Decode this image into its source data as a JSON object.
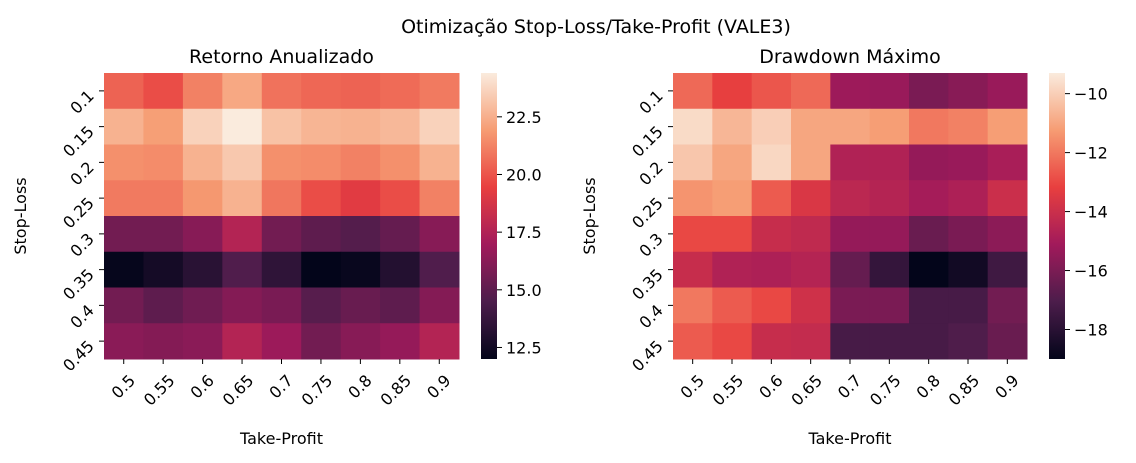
{
  "suptitle": "Otimização Stop-Loss/Take-Profit (VALE3)",
  "colormap": [
    "#03051a",
    "#4c1d4b",
    "#a11a5b",
    "#e83f3f",
    "#f69c73",
    "#faebdd"
  ],
  "chart_data": [
    {
      "type": "heatmap",
      "title": "Retorno Anualizado",
      "xlabel": "Take-Profit",
      "ylabel": "Stop-Loss",
      "x": [
        "0.5",
        "0.55",
        "0.6",
        "0.65",
        "0.7",
        "0.75",
        "0.8",
        "0.85",
        "0.9"
      ],
      "y": [
        "0.1",
        "0.15",
        "0.2",
        "0.25",
        "0.3",
        "0.35",
        "0.4",
        "0.45"
      ],
      "values": [
        [
          20.4,
          19.8,
          21.2,
          22.3,
          20.8,
          20.5,
          20.4,
          20.6,
          21.0
        ],
        [
          22.6,
          22.0,
          23.6,
          24.4,
          23.1,
          22.7,
          22.6,
          22.8,
          23.6
        ],
        [
          21.6,
          21.5,
          22.6,
          23.3,
          21.6,
          21.5,
          21.2,
          21.6,
          22.6
        ],
        [
          21.0,
          21.0,
          21.8,
          22.6,
          20.9,
          19.8,
          19.2,
          19.8,
          21.2
        ],
        [
          15.6,
          15.6,
          16.2,
          17.6,
          15.6,
          15.0,
          14.7,
          15.2,
          16.2
        ],
        [
          12.1,
          12.6,
          13.3,
          14.6,
          13.5,
          12.0,
          12.2,
          13.1,
          14.6
        ],
        [
          15.6,
          15.0,
          15.5,
          16.1,
          15.8,
          14.8,
          15.3,
          15.0,
          16.1
        ],
        [
          16.3,
          16.1,
          16.3,
          17.6,
          16.8,
          15.6,
          16.2,
          16.6,
          17.6
        ]
      ],
      "colorbar": {
        "range": [
          12.0,
          24.4
        ],
        "ticks": [
          12.5,
          15.0,
          17.5,
          20.0,
          22.5
        ],
        "tick_labels": [
          "12.5",
          "15.0",
          "17.5",
          "20.0",
          "22.5"
        ]
      }
    },
    {
      "type": "heatmap",
      "title": "Drawdown Máximo",
      "xlabel": "Take-Profit",
      "ylabel": "Stop-Loss",
      "x": [
        "0.5",
        "0.55",
        "0.6",
        "0.65",
        "0.7",
        "0.75",
        "0.8",
        "0.85",
        "0.9"
      ],
      "y": [
        "0.1",
        "0.15",
        "0.2",
        "0.25",
        "0.3",
        "0.35",
        "0.4",
        "0.45"
      ],
      "values": [
        [
          -12.3,
          -13.2,
          -12.7,
          -12.3,
          -15.2,
          -15.3,
          -16.0,
          -15.7,
          -15.3
        ],
        [
          -9.7,
          -10.6,
          -10.0,
          -11.0,
          -11.0,
          -11.2,
          -12.0,
          -11.8,
          -11.2
        ],
        [
          -10.2,
          -11.0,
          -9.8,
          -11.0,
          -14.7,
          -14.7,
          -15.4,
          -15.3,
          -14.9
        ],
        [
          -11.4,
          -11.2,
          -12.6,
          -13.6,
          -14.4,
          -14.6,
          -15.0,
          -14.8,
          -14.0
        ],
        [
          -13.0,
          -13.0,
          -14.1,
          -14.3,
          -15.4,
          -15.4,
          -16.4,
          -16.0,
          -15.6
        ],
        [
          -14.1,
          -14.7,
          -14.8,
          -14.6,
          -16.5,
          -17.7,
          -19.0,
          -18.6,
          -17.4
        ],
        [
          -12.0,
          -12.6,
          -13.0,
          -13.9,
          -16.0,
          -16.0,
          -17.2,
          -17.2,
          -16.2
        ],
        [
          -12.6,
          -13.0,
          -14.1,
          -14.2,
          -17.2,
          -17.2,
          -17.2,
          -17.0,
          -16.4
        ]
      ],
      "colorbar": {
        "range": [
          -19.0,
          -9.3
        ],
        "ticks": [
          -18,
          -16,
          -14,
          -12,
          -10
        ],
        "tick_labels": [
          "−18",
          "−16",
          "−14",
          "−12",
          "−10"
        ]
      }
    }
  ]
}
